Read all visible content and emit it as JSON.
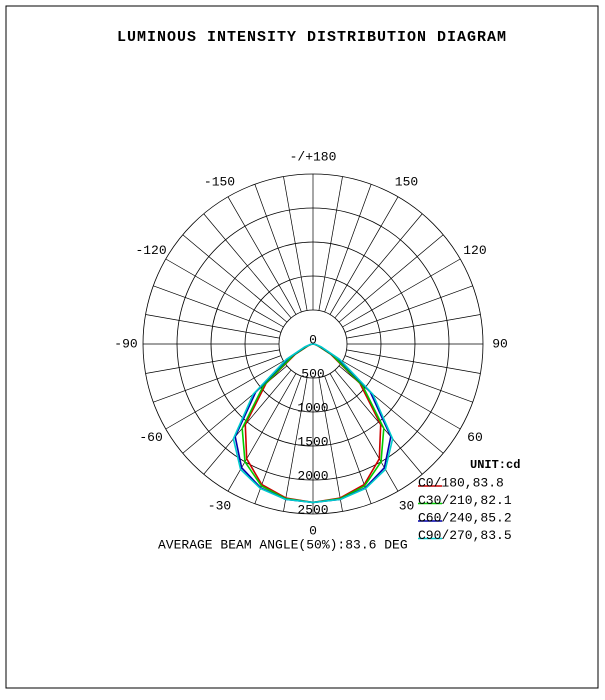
{
  "chart_data": {
    "type": "polar",
    "title": "LUMINOUS INTENSITY DISTRIBUTION DIAGRAM",
    "annotation": "AVERAGE BEAM ANGLE(50%):83.6 DEG",
    "unit_label": "UNIT:cd",
    "x": [
      -90,
      -80,
      -70,
      -60,
      -50,
      -40,
      -30,
      -20,
      -10,
      0,
      10,
      20,
      30,
      40,
      50,
      60,
      70,
      80,
      90
    ],
    "series": [
      {
        "name": "C0/180,83.8",
        "color": "#cc0000",
        "values": [
          0,
          30,
          80,
          300,
          900,
          1550,
          1950,
          2200,
          2300,
          2330,
          2300,
          2200,
          1950,
          1550,
          900,
          300,
          80,
          30,
          0
        ]
      },
      {
        "name": "C30/210,82.1",
        "color": "#00cc00",
        "values": [
          0,
          30,
          90,
          330,
          950,
          1620,
          2000,
          2220,
          2310,
          2330,
          2310,
          2220,
          2000,
          1620,
          950,
          330,
          90,
          30,
          0
        ]
      },
      {
        "name": "C60/240,85.2",
        "color": "#0000aa",
        "values": [
          0,
          40,
          120,
          420,
          1100,
          1780,
          2100,
          2250,
          2320,
          2330,
          2320,
          2250,
          2100,
          1780,
          1100,
          420,
          120,
          40,
          0
        ]
      },
      {
        "name": "C90/270,83.5",
        "color": "#00cccc",
        "values": [
          0,
          40,
          130,
          450,
          1150,
          1820,
          2130,
          2260,
          2320,
          2330,
          2320,
          2260,
          2130,
          1820,
          1150,
          450,
          130,
          40,
          0
        ]
      }
    ],
    "ylim": [
      0,
      2500
    ],
    "yticks": [
      0,
      500,
      1000,
      1500,
      2000,
      2500
    ],
    "angle_ticks": [
      0,
      30,
      60,
      90,
      120,
      150,
      {
        "value": 180,
        "label": "-/+180"
      },
      -150,
      -120,
      -90,
      -60,
      -30
    ],
    "angle_grid_step": 10
  }
}
